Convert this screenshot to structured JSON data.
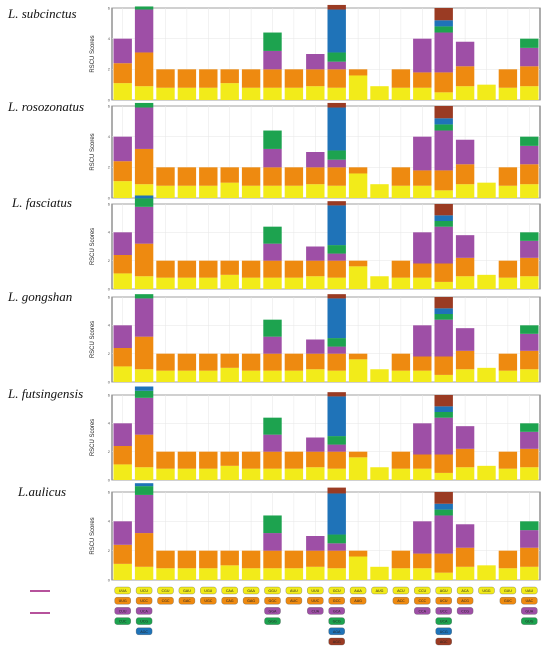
{
  "colors": {
    "c0": "#F2EB1A",
    "c1": "#EE8A10",
    "c2": "#9E4FA6",
    "c3": "#1DA34F",
    "c4": "#1F73B8",
    "c5": "#9A3B23",
    "c6": "#E8202A"
  },
  "chart_data": {
    "type": "bar",
    "stacked": true,
    "ylabel": "RSCU Scores",
    "ylim": [
      0,
      6
    ],
    "yticks": [
      0,
      2,
      4,
      6
    ],
    "categories": [
      "Leu",
      "Ser",
      "Arg",
      "Asp",
      "Cys",
      "Gln",
      "Glu",
      "Gly",
      "Ile",
      "Phe",
      "Ala",
      "Lys",
      "Met",
      "Thr",
      "Pro",
      "Ser2",
      "Thr2",
      "Trp",
      "Val",
      "Tyr"
    ],
    "panels": [
      {
        "species": "L. subcinctus",
        "bars": [
          [
            1.1,
            1.3,
            1.6
          ],
          [
            0.9,
            2.2,
            2.8,
            0.2
          ],
          [
            0.8,
            1.2
          ],
          [
            0.8,
            1.2
          ],
          [
            0.8,
            1.2
          ],
          [
            1.1,
            0.9
          ],
          [
            0.8,
            1.2
          ],
          [
            0.8,
            1.2,
            1.2,
            1.2
          ],
          [
            0.8,
            1.2
          ],
          [
            0.9,
            1.1,
            1.0
          ],
          [
            0.8,
            1.2,
            0.5,
            0.6,
            2.8,
            0.3
          ],
          [
            1.6,
            0.4
          ],
          [
            0.9
          ],
          [
            0.8,
            1.2
          ],
          [
            0.8,
            1.0,
            2.2
          ],
          [
            0.5,
            1.3,
            2.6,
            0.4,
            0.4,
            0.8
          ],
          [
            0.9,
            1.3,
            1.6
          ],
          [
            1.0
          ],
          [
            0.8,
            1.2
          ],
          [
            0.9,
            1.3,
            1.2,
            0.6
          ]
        ]
      },
      {
        "species": "L. rosozonatus",
        "bars": [
          [
            1.1,
            1.3,
            1.6
          ],
          [
            0.9,
            2.3,
            2.7,
            0.3
          ],
          [
            0.8,
            1.2
          ],
          [
            0.8,
            1.2
          ],
          [
            0.8,
            1.2
          ],
          [
            1.0,
            1.0
          ],
          [
            0.8,
            1.2
          ],
          [
            0.8,
            1.2,
            1.2,
            1.2
          ],
          [
            0.8,
            1.2
          ],
          [
            0.9,
            1.1,
            1.0
          ],
          [
            0.8,
            1.2,
            0.5,
            0.6,
            2.8,
            0.3
          ],
          [
            1.6,
            0.4
          ],
          [
            0.9
          ],
          [
            0.8,
            1.2
          ],
          [
            0.8,
            1.0,
            2.2
          ],
          [
            0.5,
            1.3,
            2.6,
            0.4,
            0.4,
            0.8
          ],
          [
            0.9,
            1.3,
            1.6
          ],
          [
            1.0
          ],
          [
            0.8,
            1.2
          ],
          [
            0.9,
            1.3,
            1.2,
            0.6
          ]
        ]
      },
      {
        "species": "L. fasciatus",
        "bars": [
          [
            1.1,
            1.3,
            1.6
          ],
          [
            0.9,
            2.3,
            2.6,
            0.6,
            0.2
          ],
          [
            0.8,
            1.2
          ],
          [
            0.8,
            1.2
          ],
          [
            0.8,
            1.2
          ],
          [
            1.0,
            1.0
          ],
          [
            0.8,
            1.2
          ],
          [
            0.8,
            1.2,
            1.2,
            1.2
          ],
          [
            0.8,
            1.2
          ],
          [
            0.9,
            1.1,
            1.0
          ],
          [
            0.8,
            1.2,
            0.5,
            0.6,
            2.8,
            0.3
          ],
          [
            1.6,
            0.4
          ],
          [
            0.9
          ],
          [
            0.8,
            1.2
          ],
          [
            0.8,
            1.0,
            2.2
          ],
          [
            0.5,
            1.3,
            2.6,
            0.4,
            0.4,
            0.8
          ],
          [
            0.9,
            1.3,
            1.6
          ],
          [
            1.0
          ],
          [
            0.8,
            1.2
          ],
          [
            0.9,
            1.3,
            1.2,
            0.6
          ]
        ]
      },
      {
        "species": "L. gongshan",
        "bars": [
          [
            1.1,
            1.3,
            1.6
          ],
          [
            0.9,
            2.3,
            2.7,
            0.3
          ],
          [
            0.8,
            1.2
          ],
          [
            0.8,
            1.2
          ],
          [
            0.8,
            1.2
          ],
          [
            1.0,
            1.0
          ],
          [
            0.8,
            1.2
          ],
          [
            0.8,
            1.2,
            1.2,
            1.2
          ],
          [
            0.8,
            1.2
          ],
          [
            0.9,
            1.1,
            1.0
          ],
          [
            0.8,
            1.2,
            0.5,
            0.6,
            2.8,
            0.3
          ],
          [
            1.6,
            0.4
          ],
          [
            0.9
          ],
          [
            0.8,
            1.2
          ],
          [
            0.8,
            1.0,
            2.2
          ],
          [
            0.5,
            1.3,
            2.6,
            0.4,
            0.4,
            0.8
          ],
          [
            0.9,
            1.3,
            1.6
          ],
          [
            1.0
          ],
          [
            0.8,
            1.2
          ],
          [
            0.9,
            1.3,
            1.2,
            0.6
          ]
        ]
      },
      {
        "species": "L. futsingensis",
        "bars": [
          [
            1.1,
            1.3,
            1.6
          ],
          [
            0.9,
            2.3,
            2.6,
            0.5,
            0.3
          ],
          [
            0.8,
            1.2
          ],
          [
            0.8,
            1.2
          ],
          [
            0.8,
            1.2
          ],
          [
            1.0,
            1.0
          ],
          [
            0.8,
            1.2
          ],
          [
            0.8,
            1.2,
            1.2,
            1.2
          ],
          [
            0.8,
            1.2
          ],
          [
            0.9,
            1.1,
            1.0
          ],
          [
            0.8,
            1.2,
            0.5,
            0.6,
            2.8,
            0.3
          ],
          [
            1.6,
            0.4
          ],
          [
            0.9
          ],
          [
            0.8,
            1.2
          ],
          [
            0.8,
            1.0,
            2.2
          ],
          [
            0.5,
            1.3,
            2.6,
            0.4,
            0.4,
            0.8
          ],
          [
            0.9,
            1.3,
            1.6
          ],
          [
            1.0
          ],
          [
            0.8,
            1.2
          ],
          [
            0.9,
            1.3,
            1.2,
            0.6
          ]
        ]
      },
      {
        "species": "L.aulicus",
        "bars": [
          [
            1.1,
            1.3,
            1.6
          ],
          [
            0.9,
            2.3,
            2.6,
            0.6,
            0.2
          ],
          [
            0.8,
            1.2
          ],
          [
            0.8,
            1.2
          ],
          [
            0.8,
            1.2
          ],
          [
            1.0,
            1.0
          ],
          [
            0.8,
            1.2
          ],
          [
            0.8,
            1.2,
            1.2,
            1.2
          ],
          [
            0.8,
            1.2
          ],
          [
            0.9,
            1.1,
            1.0
          ],
          [
            0.8,
            1.2,
            0.5,
            0.6,
            2.8,
            0.4
          ],
          [
            1.6,
            0.4
          ],
          [
            0.9
          ],
          [
            0.8,
            1.2
          ],
          [
            0.8,
            1.0,
            2.2
          ],
          [
            0.5,
            1.3,
            2.6,
            0.4,
            0.4,
            0.8
          ],
          [
            0.9,
            1.3,
            1.6
          ],
          [
            1.0
          ],
          [
            0.8,
            1.2
          ],
          [
            0.9,
            1.3,
            1.2,
            0.6
          ]
        ]
      }
    ],
    "codon_legend": [
      [
        "UUA",
        "UUG",
        "CUU",
        "CUC"
      ],
      [
        "UCU",
        "UCC",
        "UCA",
        "UCG",
        "AGC"
      ],
      [
        "CGU",
        "CGC"
      ],
      [
        "GAU",
        "GAC"
      ],
      [
        "UGU",
        "UGC"
      ],
      [
        "CAA",
        "CAG"
      ],
      [
        "GAA",
        "GAG"
      ],
      [
        "GGU",
        "GGC",
        "GGA",
        "GGG"
      ],
      [
        "AUU",
        "AUC"
      ],
      [
        "UUU",
        "UUC",
        "CUA"
      ],
      [
        "GCU",
        "GCC",
        "GCA",
        "GCG",
        "AGA",
        "AGG"
      ],
      [
        "AAA",
        "AAG"
      ],
      [
        "AUG"
      ],
      [
        "ACU",
        "ACC"
      ],
      [
        "CCU",
        "CCC",
        "CCA"
      ],
      [
        "AGU",
        "UCU",
        "UCC",
        "UCA",
        "UCG",
        "AGC"
      ],
      [
        "ACA",
        "ACG",
        "CCG"
      ],
      [
        "UGG"
      ],
      [
        "GUU",
        "GUC"
      ],
      [
        "UAU",
        "UAC",
        "GUA",
        "GUG"
      ]
    ]
  }
}
